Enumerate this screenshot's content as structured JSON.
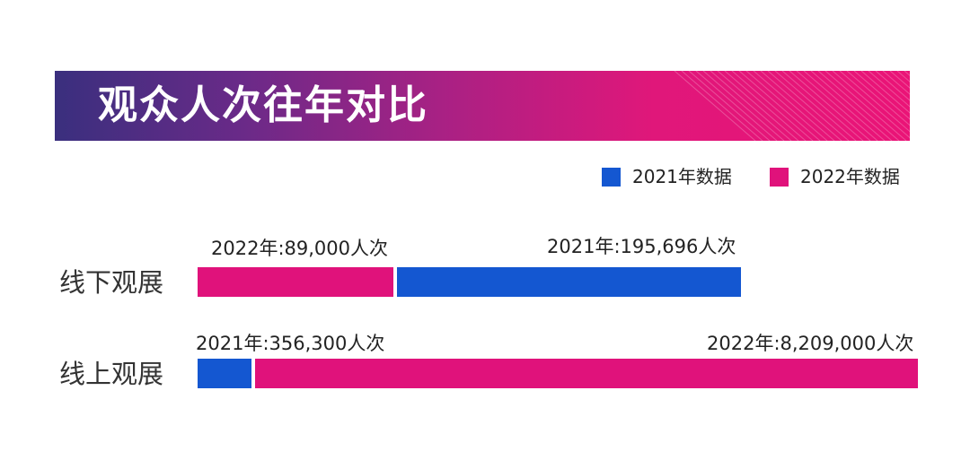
{
  "title": "观众人次往年对比",
  "colors": {
    "year2021": "#1457d1",
    "year2022": "#e0127b"
  },
  "legend": [
    {
      "label": "2021年数据",
      "color": "#1457d1"
    },
    {
      "label": "2022年数据",
      "color": "#e0127b"
    }
  ],
  "chart_data": {
    "type": "bar",
    "orientation": "horizontal",
    "stacked": true,
    "categories": [
      "线下观展",
      "线上观展"
    ],
    "series": [
      {
        "name": "2022年数据",
        "values": [
          89000,
          8209000
        ]
      },
      {
        "name": "2021年数据",
        "values": [
          195696,
          356300
        ]
      }
    ],
    "data_labels": [
      [
        "2022年:89,000人次",
        "2021年:195,696人次"
      ],
      [
        "2021年:356,300人次",
        "2022年:8,209,000人次"
      ]
    ],
    "legend_position": "top-right",
    "grid": false
  }
}
